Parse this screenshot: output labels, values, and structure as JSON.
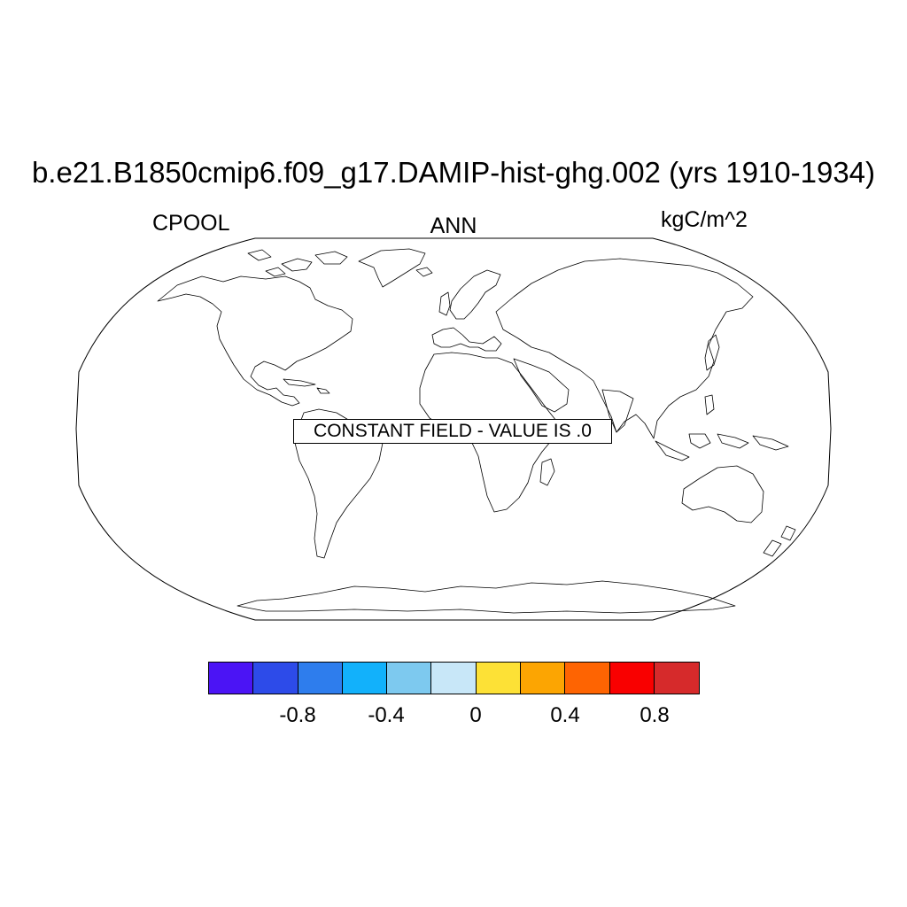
{
  "title": "b.e21.B1850cmip6.f09_g17.DAMIP-hist-ghg.002 (yrs 1910-1934)",
  "subtitle_left": "CPOOL",
  "subtitle_center": "ANN",
  "subtitle_right": "kgC/m^2",
  "message": "CONSTANT FIELD - VALUE IS .0",
  "projection": "Robinson",
  "colorbar": {
    "colors": [
      "#4b14f5",
      "#2d4be9",
      "#2e7ded",
      "#12b1fb",
      "#7dc9ef",
      "#c8e7f8",
      "#fde136",
      "#fca502",
      "#fe6402",
      "#f90000",
      "#d62a2b"
    ],
    "tick_labels": [
      "-0.8",
      "-0.4",
      "0",
      "0.4",
      "0.8"
    ]
  }
}
